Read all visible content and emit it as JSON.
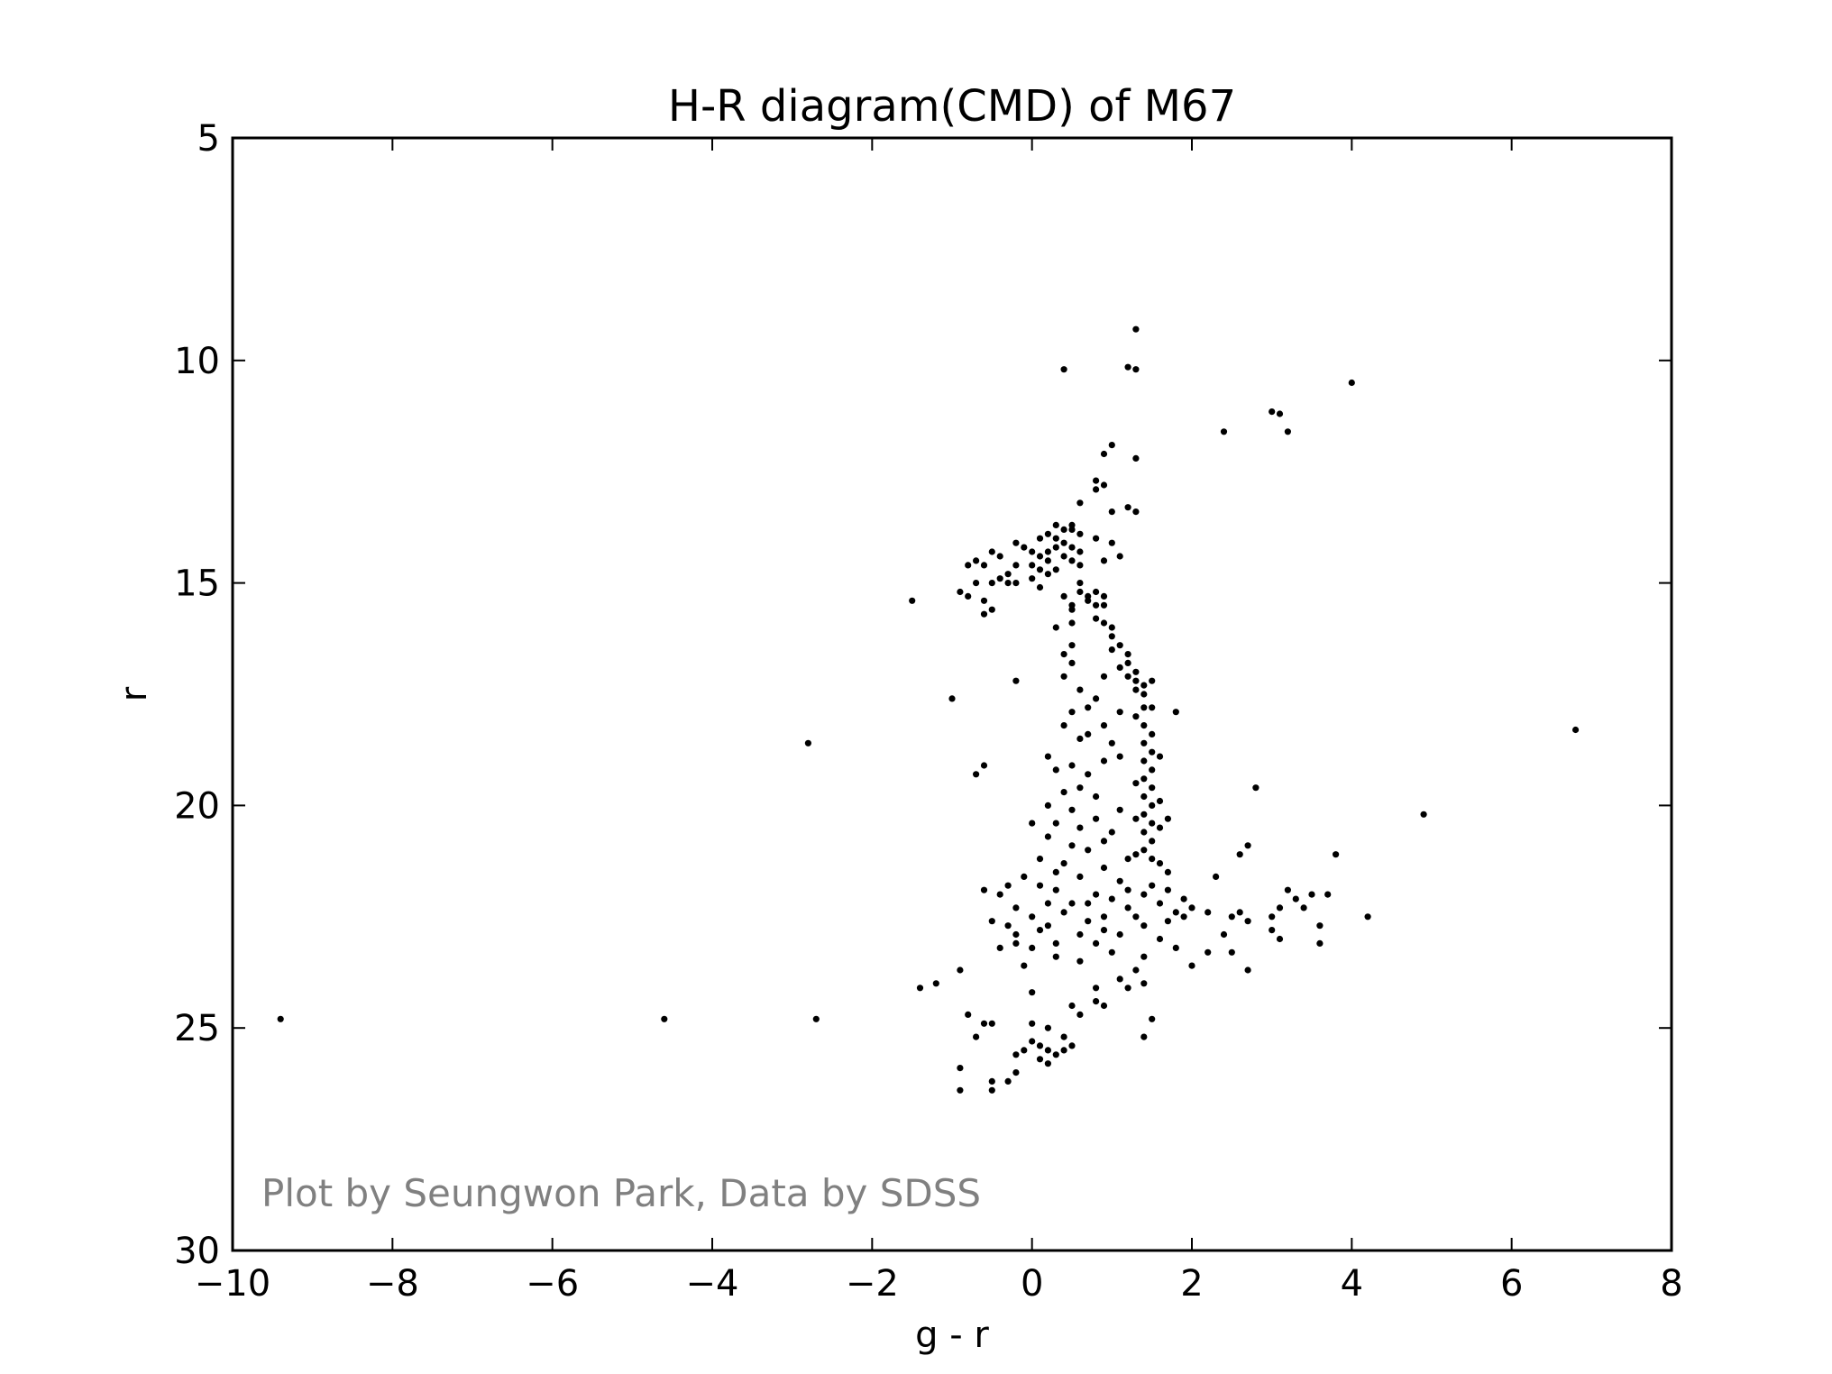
{
  "chart_data": {
    "type": "scatter",
    "title": "H-R diagram(CMD) of M67",
    "xlabel": "g - r",
    "ylabel": "r",
    "xlim": [
      -10,
      8
    ],
    "ylim": [
      30,
      5
    ],
    "y_inverted": true,
    "grid": false,
    "xticks": [
      "−10",
      "−8",
      "−6",
      "−4",
      "−2",
      "0",
      "2",
      "4",
      "6",
      "8"
    ],
    "yticks": [
      "5",
      "10",
      "15",
      "20",
      "25",
      "30"
    ],
    "annotation": "Plot by Seungwon Park, Data by SDSS",
    "colors": {
      "points": "#000000",
      "annotation": "#808080",
      "frame": "#000000"
    },
    "points": [
      [
        1.3,
        9.3
      ],
      [
        0.4,
        10.2
      ],
      [
        1.2,
        10.15
      ],
      [
        1.3,
        10.2
      ],
      [
        4.0,
        10.5
      ],
      [
        2.4,
        11.6
      ],
      [
        3.0,
        11.15
      ],
      [
        3.1,
        11.2
      ],
      [
        3.2,
        11.6
      ],
      [
        1.0,
        11.9
      ],
      [
        0.9,
        12.1
      ],
      [
        1.3,
        12.2
      ],
      [
        0.8,
        12.7
      ],
      [
        0.9,
        12.8
      ],
      [
        0.8,
        12.9
      ],
      [
        0.6,
        13.2
      ],
      [
        1.2,
        13.3
      ],
      [
        1.3,
        13.4
      ],
      [
        1.0,
        13.4
      ],
      [
        0.3,
        13.7
      ],
      [
        0.4,
        13.8
      ],
      [
        0.5,
        13.8
      ],
      [
        0.6,
        13.9
      ],
      [
        0.5,
        13.7
      ],
      [
        0.2,
        13.9
      ],
      [
        0.1,
        14.0
      ],
      [
        0.3,
        14.0
      ],
      [
        0.4,
        14.1
      ],
      [
        0.5,
        14.2
      ],
      [
        0.6,
        14.3
      ],
      [
        0.4,
        14.4
      ],
      [
        0.5,
        14.5
      ],
      [
        0.6,
        14.6
      ],
      [
        0.3,
        14.2
      ],
      [
        0.2,
        14.3
      ],
      [
        0.1,
        14.4
      ],
      [
        0.0,
        14.3
      ],
      [
        -0.1,
        14.2
      ],
      [
        -0.2,
        14.1
      ],
      [
        0.2,
        14.5
      ],
      [
        0.0,
        14.6
      ],
      [
        -0.2,
        14.6
      ],
      [
        -0.4,
        14.4
      ],
      [
        -0.5,
        14.3
      ],
      [
        -0.7,
        14.5
      ],
      [
        -0.8,
        14.6
      ],
      [
        -0.6,
        14.6
      ],
      [
        -0.3,
        14.8
      ],
      [
        -0.5,
        15.0
      ],
      [
        -0.7,
        15.0
      ],
      [
        -0.9,
        15.2
      ],
      [
        -0.8,
        15.3
      ],
      [
        -0.6,
        15.4
      ],
      [
        -0.3,
        15.0
      ],
      [
        -0.4,
        14.9
      ],
      [
        -0.2,
        15.0
      ],
      [
        0.0,
        14.9
      ],
      [
        0.1,
        15.1
      ],
      [
        0.2,
        14.8
      ],
      [
        0.3,
        14.7
      ],
      [
        0.1,
        14.7
      ],
      [
        -0.6,
        15.7
      ],
      [
        -0.5,
        15.6
      ],
      [
        0.4,
        15.3
      ],
      [
        0.5,
        15.5
      ],
      [
        0.7,
        15.4
      ],
      [
        0.8,
        15.5
      ],
      [
        0.9,
        15.5
      ],
      [
        0.6,
        15.0
      ],
      [
        0.6,
        15.2
      ],
      [
        0.7,
        15.3
      ],
      [
        0.5,
        15.6
      ],
      [
        0.8,
        15.2
      ],
      [
        0.9,
        15.3
      ],
      [
        1.0,
        14.1
      ],
      [
        1.1,
        14.4
      ],
      [
        0.8,
        14.0
      ],
      [
        0.9,
        14.5
      ],
      [
        0.3,
        16.0
      ],
      [
        0.5,
        15.9
      ],
      [
        0.8,
        15.8
      ],
      [
        0.9,
        15.9
      ],
      [
        1.0,
        16.0
      ],
      [
        1.0,
        16.2
      ],
      [
        1.1,
        16.4
      ],
      [
        1.0,
        16.5
      ],
      [
        1.2,
        16.6
      ],
      [
        1.2,
        16.8
      ],
      [
        1.3,
        17.0
      ],
      [
        1.3,
        17.2
      ],
      [
        1.4,
        17.3
      ],
      [
        1.3,
        17.4
      ],
      [
        1.4,
        17.5
      ],
      [
        1.5,
        17.2
      ],
      [
        1.2,
        17.1
      ],
      [
        1.1,
        16.9
      ],
      [
        0.5,
        16.4
      ],
      [
        0.4,
        16.6
      ],
      [
        0.5,
        16.8
      ],
      [
        0.4,
        17.1
      ],
      [
        0.6,
        17.4
      ],
      [
        0.7,
        17.8
      ],
      [
        0.8,
        17.6
      ],
      [
        0.9,
        17.1
      ],
      [
        0.5,
        17.9
      ],
      [
        0.4,
        18.2
      ],
      [
        0.6,
        18.5
      ],
      [
        0.7,
        18.4
      ],
      [
        0.9,
        18.2
      ],
      [
        1.1,
        17.9
      ],
      [
        1.4,
        17.8
      ],
      [
        1.5,
        17.8
      ],
      [
        1.3,
        18.0
      ],
      [
        1.4,
        18.2
      ],
      [
        1.5,
        18.4
      ],
      [
        1.4,
        18.6
      ],
      [
        1.5,
        18.8
      ],
      [
        1.4,
        19.0
      ],
      [
        1.5,
        19.2
      ],
      [
        1.4,
        19.4
      ],
      [
        1.5,
        19.6
      ],
      [
        1.4,
        19.8
      ],
      [
        1.5,
        20.0
      ],
      [
        1.4,
        20.2
      ],
      [
        1.5,
        20.4
      ],
      [
        1.4,
        20.6
      ],
      [
        1.5,
        20.8
      ],
      [
        1.4,
        21.0
      ],
      [
        1.5,
        21.2
      ],
      [
        1.6,
        19.9
      ],
      [
        1.6,
        20.5
      ],
      [
        1.6,
        18.9
      ],
      [
        1.3,
        19.5
      ],
      [
        1.3,
        20.3
      ],
      [
        1.3,
        21.1
      ],
      [
        1.6,
        21.3
      ],
      [
        1.7,
        21.5
      ],
      [
        1.8,
        17.9
      ],
      [
        1.7,
        20.3
      ],
      [
        0.2,
        18.9
      ],
      [
        0.3,
        19.2
      ],
      [
        0.5,
        19.1
      ],
      [
        0.7,
        19.3
      ],
      [
        0.9,
        19.0
      ],
      [
        1.0,
        18.6
      ],
      [
        1.1,
        18.9
      ],
      [
        0.6,
        19.6
      ],
      [
        0.8,
        19.8
      ],
      [
        0.4,
        19.7
      ],
      [
        0.2,
        20.0
      ],
      [
        0.3,
        20.4
      ],
      [
        0.5,
        20.1
      ],
      [
        0.8,
        20.3
      ],
      [
        1.0,
        20.6
      ],
      [
        0.9,
        20.8
      ],
      [
        0.7,
        21.0
      ],
      [
        0.5,
        20.9
      ],
      [
        0.2,
        20.7
      ],
      [
        0.0,
        20.4
      ],
      [
        0.1,
        21.2
      ],
      [
        0.3,
        21.5
      ],
      [
        0.6,
        21.6
      ],
      [
        0.9,
        21.4
      ],
      [
        1.1,
        21.7
      ],
      [
        1.2,
        21.9
      ],
      [
        1.0,
        22.1
      ],
      [
        0.8,
        22.0
      ],
      [
        0.5,
        22.2
      ],
      [
        0.3,
        21.9
      ],
      [
        0.1,
        21.8
      ],
      [
        -0.1,
        21.6
      ],
      [
        -0.3,
        21.8
      ],
      [
        -0.4,
        22.0
      ],
      [
        -0.2,
        22.3
      ],
      [
        0.0,
        22.5
      ],
      [
        0.2,
        22.7
      ],
      [
        0.4,
        22.4
      ],
      [
        0.7,
        22.6
      ],
      [
        0.9,
        22.8
      ],
      [
        1.2,
        22.3
      ],
      [
        1.4,
        22.0
      ],
      [
        1.6,
        22.2
      ],
      [
        1.8,
        22.4
      ],
      [
        1.9,
        22.1
      ],
      [
        2.0,
        22.3
      ],
      [
        1.7,
        21.9
      ],
      [
        1.5,
        21.8
      ],
      [
        1.3,
        22.5
      ],
      [
        1.1,
        22.9
      ],
      [
        0.8,
        23.1
      ],
      [
        0.6,
        22.9
      ],
      [
        0.3,
        23.1
      ],
      [
        0.0,
        23.2
      ],
      [
        -0.2,
        22.9
      ],
      [
        -0.4,
        23.2
      ],
      [
        -0.2,
        23.1
      ],
      [
        0.1,
        22.8
      ],
      [
        1.4,
        22.7
      ],
      [
        1.7,
        22.6
      ],
      [
        1.9,
        22.5
      ],
      [
        2.2,
        22.4
      ],
      [
        2.3,
        21.6
      ],
      [
        2.5,
        22.5
      ],
      [
        2.6,
        22.4
      ],
      [
        2.7,
        22.6
      ],
      [
        2.4,
        22.9
      ],
      [
        2.2,
        23.3
      ],
      [
        2.0,
        23.6
      ],
      [
        1.8,
        23.2
      ],
      [
        1.6,
        23.0
      ],
      [
        1.4,
        23.4
      ],
      [
        1.3,
        23.7
      ],
      [
        2.5,
        23.3
      ],
      [
        2.7,
        23.7
      ],
      [
        2.6,
        21.1
      ],
      [
        2.7,
        20.9
      ],
      [
        2.8,
        19.6
      ],
      [
        3.0,
        22.5
      ],
      [
        3.1,
        22.3
      ],
      [
        3.2,
        21.9
      ],
      [
        3.0,
        22.8
      ],
      [
        3.1,
        23.0
      ],
      [
        3.3,
        22.1
      ],
      [
        3.4,
        22.3
      ],
      [
        3.5,
        22.0
      ],
      [
        3.6,
        22.7
      ],
      [
        3.6,
        23.1
      ],
      [
        3.7,
        22.0
      ],
      [
        3.8,
        21.1
      ],
      [
        4.2,
        22.5
      ],
      [
        4.9,
        20.2
      ],
      [
        6.8,
        18.3
      ],
      [
        -1.0,
        17.6
      ],
      [
        -0.2,
        17.2
      ],
      [
        -0.6,
        19.1
      ],
      [
        -0.7,
        19.3
      ],
      [
        -0.6,
        21.9
      ],
      [
        -0.9,
        23.7
      ],
      [
        -1.2,
        24.0
      ],
      [
        -1.4,
        24.1
      ],
      [
        -0.8,
        24.7
      ],
      [
        -0.6,
        24.9
      ],
      [
        -0.7,
        25.2
      ],
      [
        -0.5,
        24.9
      ],
      [
        0.0,
        24.9
      ],
      [
        0.2,
        25.0
      ],
      [
        0.0,
        25.3
      ],
      [
        0.1,
        25.4
      ],
      [
        0.2,
        25.5
      ],
      [
        -0.1,
        25.5
      ],
      [
        -0.2,
        25.6
      ],
      [
        0.1,
        25.7
      ],
      [
        0.3,
        25.6
      ],
      [
        0.4,
        25.5
      ],
      [
        0.5,
        25.4
      ],
      [
        0.4,
        25.2
      ],
      [
        0.6,
        24.7
      ],
      [
        0.5,
        24.5
      ],
      [
        0.8,
        24.1
      ],
      [
        0.8,
        24.4
      ],
      [
        0.9,
        24.5
      ],
      [
        1.1,
        23.9
      ],
      [
        1.2,
        24.1
      ],
      [
        1.4,
        24.0
      ],
      [
        1.5,
        24.8
      ],
      [
        1.4,
        25.2
      ],
      [
        0.2,
        25.8
      ],
      [
        -0.2,
        26.0
      ],
      [
        -0.5,
        26.2
      ],
      [
        -0.5,
        26.4
      ],
      [
        -0.3,
        26.2
      ],
      [
        -0.9,
        25.9
      ],
      [
        -0.9,
        26.4
      ],
      [
        -1.5,
        15.4
      ],
      [
        -2.8,
        18.6
      ],
      [
        -2.7,
        24.8
      ],
      [
        -4.6,
        24.8
      ],
      [
        -9.4,
        24.8
      ],
      [
        0.0,
        24.2
      ],
      [
        0.6,
        23.5
      ],
      [
        1.0,
        23.3
      ],
      [
        0.3,
        23.4
      ],
      [
        -0.1,
        23.6
      ],
      [
        0.7,
        22.2
      ],
      [
        0.9,
        22.5
      ],
      [
        1.2,
        21.2
      ],
      [
        1.1,
        20.1
      ],
      [
        0.6,
        20.5
      ],
      [
        0.4,
        21.3
      ],
      [
        0.2,
        22.2
      ],
      [
        -0.5,
        22.6
      ],
      [
        -0.3,
        22.7
      ]
    ]
  }
}
